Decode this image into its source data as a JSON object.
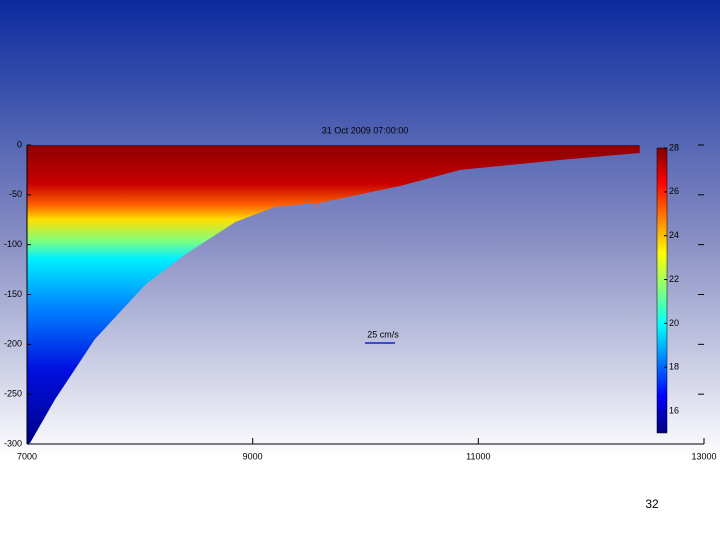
{
  "chart_data": {
    "type": "section",
    "title": "31 Oct 2009 07:00:00",
    "x": [
      7027,
      7250,
      7600,
      8050,
      8400,
      8850,
      9200,
      9600,
      10310,
      10840,
      11720,
      12430
    ],
    "values": [
      -299,
      -255,
      -195,
      -140,
      -110,
      -77,
      -62,
      -58,
      -41,
      -25,
      -15,
      -8
    ],
    "xlim": [
      7000,
      13000
    ],
    "xticks": [
      7000,
      9000,
      11000,
      13000
    ],
    "ylim": [
      -300,
      0
    ],
    "yticks": [
      0,
      -50,
      -100,
      -150,
      -200,
      -250,
      -300
    ],
    "clim": [
      15,
      28
    ],
    "cticks": [
      28,
      26,
      24,
      22,
      20,
      18,
      16
    ],
    "annotation": "25 cm/s"
  },
  "page_number": "32"
}
